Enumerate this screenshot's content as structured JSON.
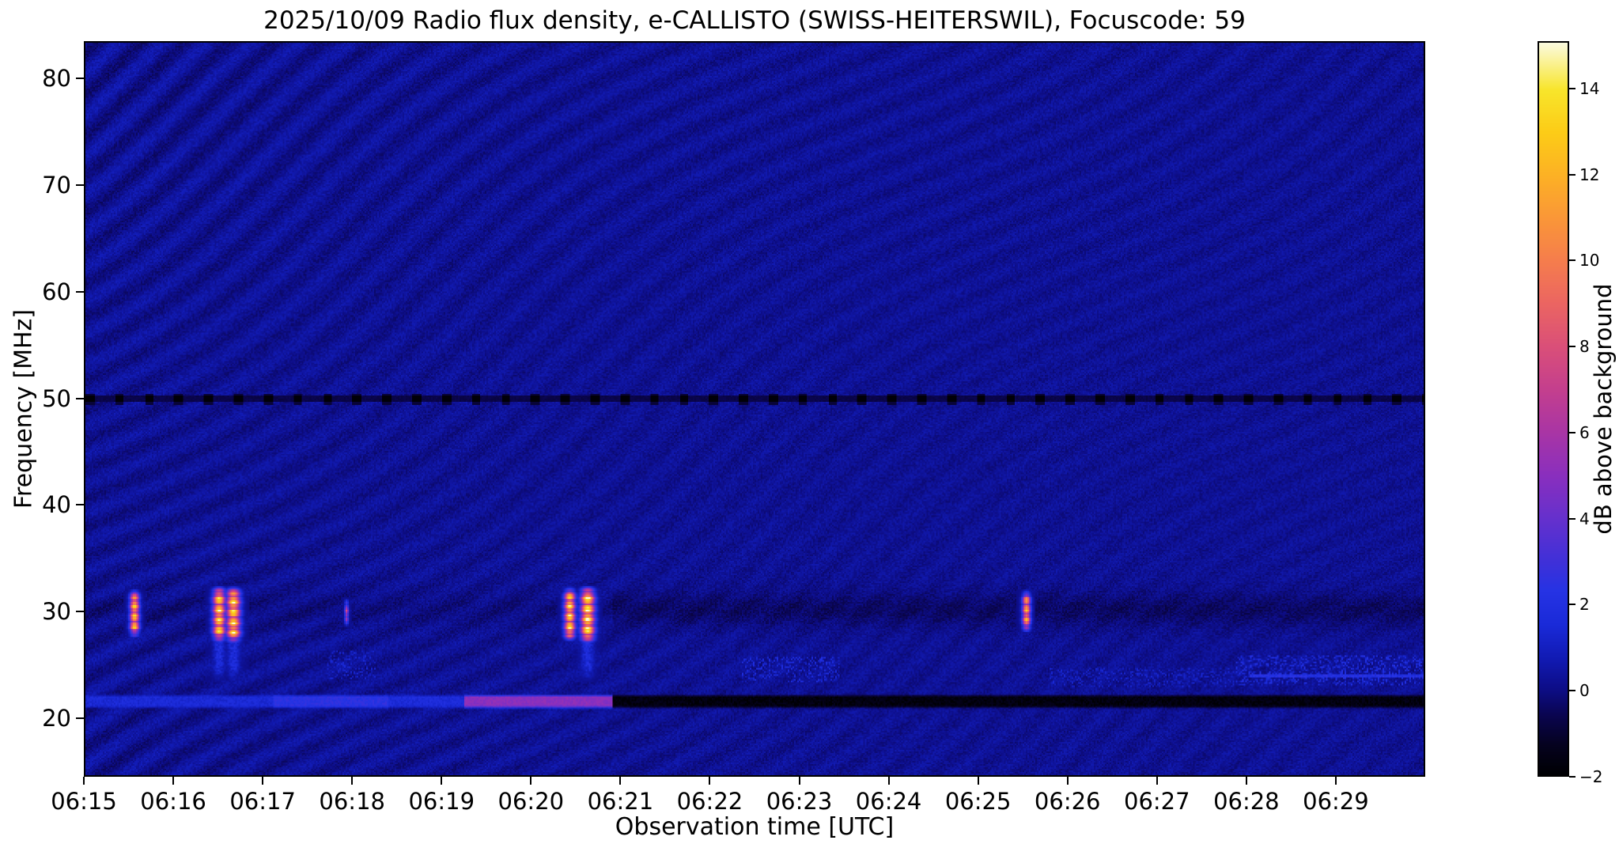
{
  "chart_data": {
    "type": "heatmap",
    "title": "2025/10/09  Radio flux density, e-CALLISTO (SWISS-HEITERSWIL), Focuscode: 59",
    "xlabel": "Observation time [UTC]",
    "ylabel": "Frequency [MHz]",
    "colorbar_label": "dB above background",
    "x_start_utc": "06:15",
    "x_span_minutes": 15,
    "x_tick_interval_minutes": 1,
    "x_ticks": [
      "06:15",
      "06:16",
      "06:17",
      "06:18",
      "06:19",
      "06:20",
      "06:21",
      "06:22",
      "06:23",
      "06:24",
      "06:25",
      "06:26",
      "06:27",
      "06:28",
      "06:29"
    ],
    "y_top_mhz": 83.5,
    "y_bottom_mhz": 14.5,
    "y_ticks_mhz": [
      80,
      70,
      60,
      50,
      40,
      30,
      20
    ],
    "value_min_db": -2,
    "value_max_db": 15.1,
    "colorbar_ticks": [
      {
        "v": 14,
        "label": "14"
      },
      {
        "v": 12,
        "label": "12"
      },
      {
        "v": 10,
        "label": "10"
      },
      {
        "v": 8,
        "label": "8"
      },
      {
        "v": 6,
        "label": "6"
      },
      {
        "v": 4,
        "label": "4"
      },
      {
        "v": 2,
        "label": "2"
      },
      {
        "v": 0,
        "label": "0"
      },
      {
        "v": -2,
        "label": "−2"
      }
    ],
    "colormap_stops": [
      [
        -2.0,
        "#000003"
      ],
      [
        -1.3,
        "#05021f"
      ],
      [
        -0.6,
        "#0a0550"
      ],
      [
        0.0,
        "#0d0d86"
      ],
      [
        0.7,
        "#111ab2"
      ],
      [
        1.5,
        "#1a2ad8"
      ],
      [
        2.3,
        "#2633e4"
      ],
      [
        3.0,
        "#4030d8"
      ],
      [
        4.0,
        "#6630cd"
      ],
      [
        5.0,
        "#8a2fbe"
      ],
      [
        6.0,
        "#a935a5"
      ],
      [
        7.0,
        "#c43f8e"
      ],
      [
        8.0,
        "#da4f79"
      ],
      [
        9.0,
        "#eb6562"
      ],
      [
        10.0,
        "#f57d4d"
      ],
      [
        11.0,
        "#fa9738"
      ],
      [
        12.0,
        "#fcb125"
      ],
      [
        13.0,
        "#fccc17"
      ],
      [
        14.0,
        "#f8e52b"
      ],
      [
        15.1,
        "#fbfbe0"
      ]
    ],
    "background": {
      "base_db": 0.2,
      "ripple_amplitude_db": 0.5,
      "noise_db": 0.65
    },
    "features": {
      "calibration_line": {
        "freq_mhz": 49.9,
        "half_width_mhz": 0.3,
        "base_db": -0.7,
        "dash_db": -1.9,
        "dash_period_min": 0.333,
        "dash_duty": 0.3
      },
      "dark_lane": {
        "freq_mhz": 30.1,
        "sigma_mhz": 1.1,
        "depth_db_left": 0.25,
        "depth_db_right": 0.6,
        "t_split_min": 5.9
      },
      "ionosphere_band": {
        "center_mhz": 21.45,
        "half_width_mhz": 0.5,
        "segments": [
          {
            "t0_min": 0.0,
            "t1_min": 2.1,
            "db": 1.5
          },
          {
            "t0_min": 2.1,
            "t1_min": 3.4,
            "db": 2.4
          },
          {
            "t0_min": 3.4,
            "t1_min": 4.25,
            "db": 1.6
          },
          {
            "t0_min": 4.25,
            "t1_min": 5.9,
            "db": 5.0
          },
          {
            "t0_min": 5.9,
            "t1_min": 15.0,
            "db": -1.7
          }
        ]
      },
      "interference_line": {
        "t0_min": 13.05,
        "freq_mhz": 23.85,
        "half_width_mhz": 0.2,
        "db": 2.2
      },
      "speckle_patches": [
        {
          "t0_min": 2.7,
          "t1_min": 3.25,
          "f0_mhz": 23.6,
          "f1_mhz": 26.2,
          "db": 1.4
        },
        {
          "t0_min": 7.35,
          "t1_min": 8.45,
          "f0_mhz": 23.2,
          "f1_mhz": 25.6,
          "db": 1.7
        },
        {
          "t0_min": 10.8,
          "t1_min": 12.9,
          "f0_mhz": 22.8,
          "f1_mhz": 24.6,
          "db": 1.3
        },
        {
          "t0_min": 12.9,
          "t1_min": 15.0,
          "f0_mhz": 23.0,
          "f1_mhz": 25.8,
          "db": 2.0
        }
      ],
      "bursts": [
        {
          "time_utc": "06:15:33",
          "t_min": 0.55,
          "sigma_min": 0.035,
          "f_lo_mhz": 27.4,
          "f_hi_mhz": 32.1,
          "peak_db": 13,
          "tail": false
        },
        {
          "time_utc": "06:16:30",
          "t_min": 1.5,
          "sigma_min": 0.045,
          "f_lo_mhz": 26.9,
          "f_hi_mhz": 32.4,
          "peak_db": 14,
          "tail": true
        },
        {
          "time_utc": "06:16:40",
          "t_min": 1.66,
          "sigma_min": 0.05,
          "f_lo_mhz": 26.8,
          "f_hi_mhz": 32.4,
          "peak_db": 14.2,
          "tail": true
        },
        {
          "time_utc": "06:17:56",
          "t_min": 2.93,
          "sigma_min": 0.015,
          "f_lo_mhz": 28.4,
          "f_hi_mhz": 31.2,
          "peak_db": 7,
          "tail": false
        },
        {
          "time_utc": "06:20:26",
          "t_min": 5.43,
          "sigma_min": 0.04,
          "f_lo_mhz": 27.0,
          "f_hi_mhz": 32.3,
          "peak_db": 14,
          "tail": false
        },
        {
          "time_utc": "06:20:38",
          "t_min": 5.63,
          "sigma_min": 0.05,
          "f_lo_mhz": 26.8,
          "f_hi_mhz": 32.4,
          "peak_db": 15,
          "tail": true
        },
        {
          "time_utc": "06:25:33",
          "t_min": 10.55,
          "sigma_min": 0.03,
          "f_lo_mhz": 27.9,
          "f_hi_mhz": 32.0,
          "peak_db": 12,
          "tail": false
        }
      ]
    }
  }
}
